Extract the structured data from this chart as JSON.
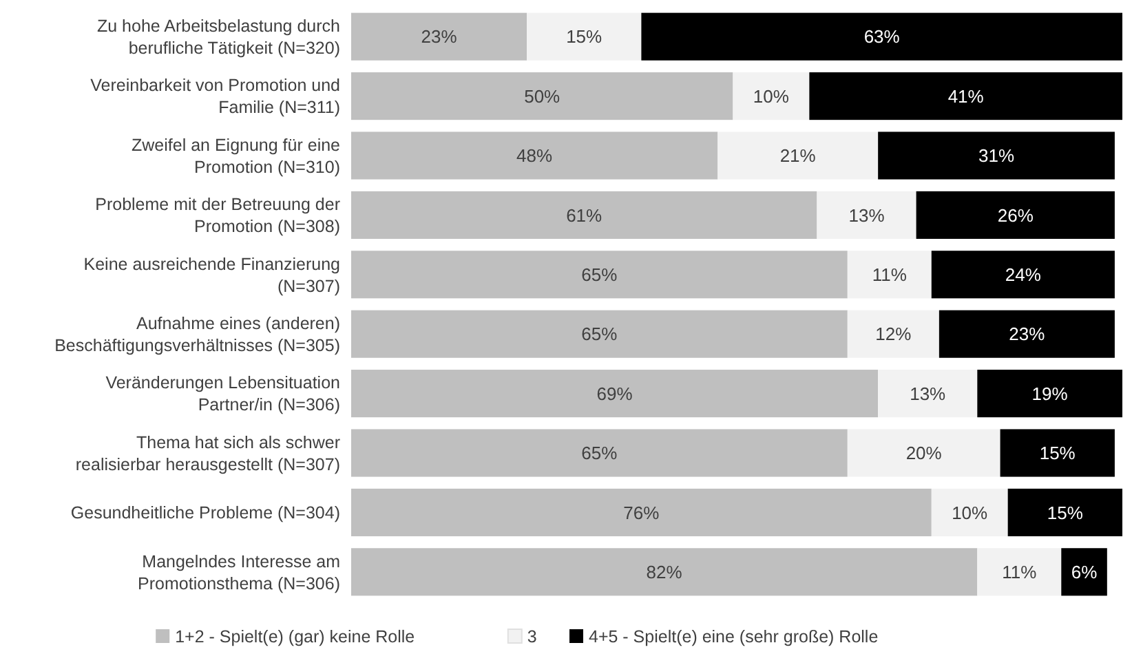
{
  "chart_data": {
    "type": "bar",
    "orientation": "horizontal",
    "stacked": true,
    "legend": "bottom",
    "categories": [
      "Zu hohe Arbeitsbelastung durch berufliche Tätigkeit (N=320)",
      "Vereinbarkeit von Promotion und Familie (N=311)",
      "Zweifel an Eignung für eine Promotion (N=310)",
      "Probleme mit der Betreuung der Promotion (N=308)",
      "Keine ausreichende Finanzierung (N=307)",
      "Aufnahme eines (anderen) Beschäftigungsverhältnisses (N=305)",
      "Veränderungen Lebensituation Partner/in (N=306)",
      "Thema hat sich als schwer realisierbar herausgestellt (N=307)",
      "Gesundheitliche Probleme (N=304)",
      "Mangelndes Interesse am Promotionsthema (N=306)"
    ],
    "series": [
      {
        "name": "1+2 - Spielt(e) (gar) keine Rolle",
        "color": "#bfbfbf",
        "values": [
          23,
          50,
          48,
          61,
          65,
          65,
          69,
          65,
          76,
          82
        ],
        "value_labels": [
          "23%",
          "50%",
          "48%",
          "61%",
          "65%",
          "65%",
          "69%",
          "65%",
          "76%",
          "82%"
        ]
      },
      {
        "name": "3",
        "color": "#f2f2f2",
        "values": [
          15,
          10,
          21,
          13,
          11,
          12,
          13,
          20,
          10,
          11
        ],
        "value_labels": [
          "15%",
          "10%",
          "21%",
          "13%",
          "11%",
          "12%",
          "13%",
          "20%",
          "10%",
          "11%"
        ]
      },
      {
        "name": "4+5 - Spielt(e) eine (sehr große) Rolle",
        "color": "#000000",
        "values": [
          63,
          41,
          31,
          26,
          24,
          23,
          19,
          15,
          15,
          6
        ],
        "value_labels": [
          "63%",
          "41%",
          "31%",
          "26%",
          "24%",
          "23%",
          "19%",
          "15%",
          "15%",
          "6%"
        ]
      }
    ]
  }
}
